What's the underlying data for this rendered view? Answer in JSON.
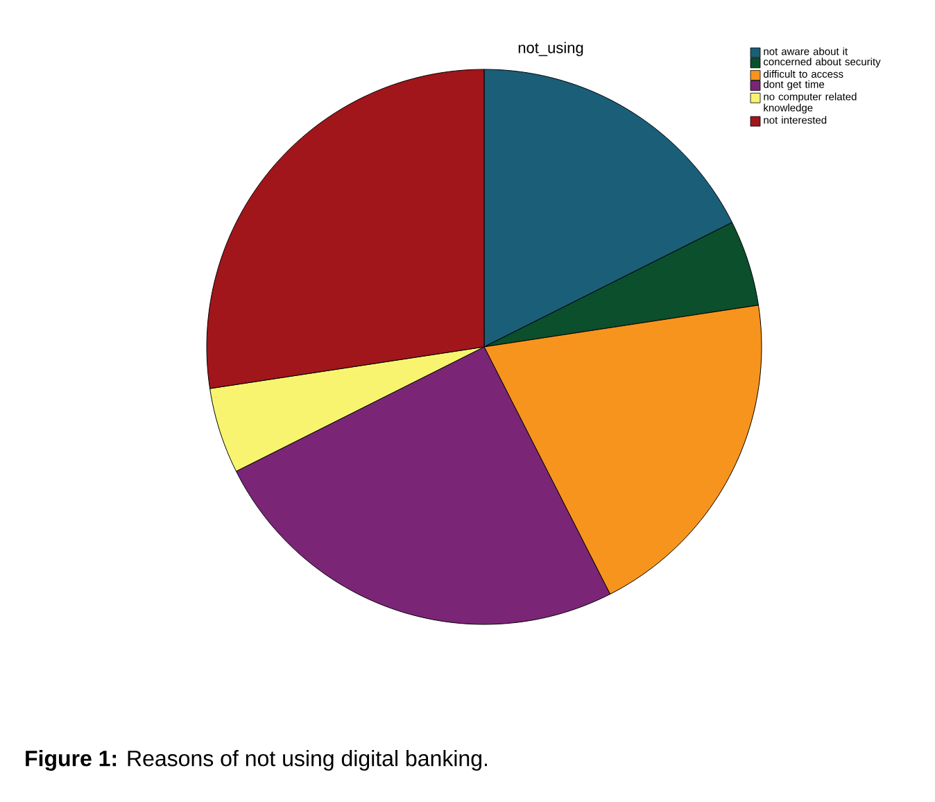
{
  "chart_data": {
    "type": "pie",
    "title": "not_using",
    "categories": [
      "not aware about it",
      "concerned about security",
      "difficult to access",
      "dont get time",
      "no computer related knowledge",
      "not interested"
    ],
    "values": [
      17.6,
      5.0,
      19.9,
      25.1,
      5.0,
      27.4
    ],
    "colors": [
      "#1b5e78",
      "#0b4f2d",
      "#f7941d",
      "#7b2577",
      "#f8f46f",
      "#a0161a"
    ],
    "legend": "top right",
    "annotations": [
      "**Figure 1:** Reasons of not using digital banking."
    ]
  }
}
